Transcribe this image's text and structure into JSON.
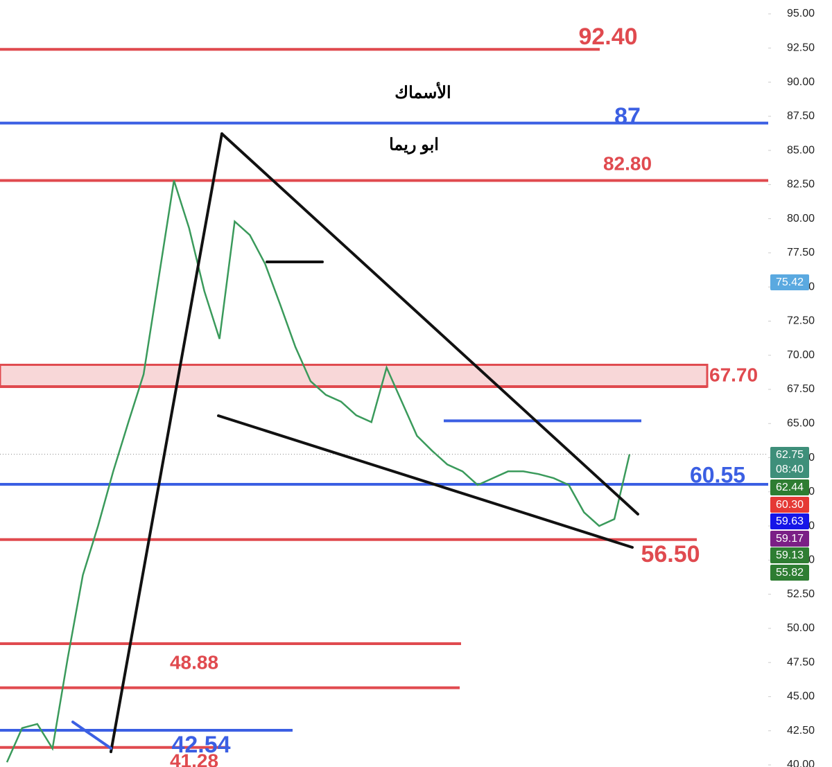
{
  "chart_data": {
    "type": "line",
    "annotations": [
      "الأسماك",
      "ابو ريما"
    ],
    "series": [
      {
        "color": "#3a9a5b",
        "values": [
          40.2,
          42.7,
          43.0,
          41.2,
          47.8,
          53.9,
          57.5,
          61.5,
          65.1,
          68.6,
          75.7,
          82.8,
          79.3,
          74.7,
          71.2,
          79.8,
          78.8,
          76.7,
          73.7,
          70.6,
          68.1,
          67.1,
          66.6,
          65.6,
          65.1,
          69.1,
          66.6,
          64.1,
          63.0,
          62.0,
          61.5,
          60.5,
          61.0,
          61.5,
          61.5,
          61.3,
          61.0,
          60.5,
          58.5,
          57.5,
          58.0,
          62.75
        ]
      }
    ],
    "levels": [
      {
        "value": 92.4,
        "label": "92.40",
        "color": "#e04a4f"
      },
      {
        "value": 87,
        "label": "87",
        "color": "#3b5fe3"
      },
      {
        "value": 82.8,
        "label": "82.80",
        "color": "#e04a4f"
      },
      {
        "value": 67.7,
        "label": "67.70",
        "color": "#e04a4f",
        "zone_top": 69.3
      },
      {
        "value": 65.2,
        "color": "#3b5fe3"
      },
      {
        "value": 60.55,
        "label": "60.55",
        "color": "#3b5fe3"
      },
      {
        "value": 56.5,
        "label": "56.50",
        "color": "#e04a4f"
      },
      {
        "value": 48.88,
        "label": "48.88",
        "color": "#e04a4f"
      },
      {
        "value": 45.65,
        "color": "#e04a4f"
      },
      {
        "value": 42.54,
        "label": "42.54",
        "color": "#3b5fe3"
      },
      {
        "value": 41.28,
        "label": "41.28",
        "color": "#e04a4f"
      }
    ],
    "axis_badges": [
      {
        "value": 75.42,
        "label": "75.42",
        "color": "#5aa9e0"
      },
      {
        "value": 62.75,
        "label": "62.75",
        "color": "#3e8f7a"
      },
      {
        "value": 62.44,
        "label": "62.44",
        "color": "#2e7d32"
      },
      {
        "value": 60.3,
        "label": "60.30",
        "color": "#e53935"
      },
      {
        "value": 59.63,
        "label": "59.63",
        "color": "#1616e8"
      },
      {
        "value": 59.17,
        "label": "59.17",
        "color": "#7b1f86"
      },
      {
        "value": 59.13,
        "label": "59.13",
        "color": "#2e7d32"
      },
      {
        "value": 55.82,
        "label": "55.82",
        "color": "#2e7d32"
      }
    ],
    "countdown": "08:40",
    "ylim": [
      40,
      95
    ],
    "yticks": [
      {
        "value": 95,
        "label": "95.00"
      },
      {
        "value": 92.5,
        "label": "92.50"
      },
      {
        "value": 90,
        "label": "90.00"
      },
      {
        "value": 87.5,
        "label": "87.50"
      },
      {
        "value": 85,
        "label": "85.00"
      },
      {
        "value": 82.5,
        "label": "82.50"
      },
      {
        "value": 80,
        "label": "80.00"
      },
      {
        "value": 77.5,
        "label": "77.50"
      },
      {
        "value": 75,
        "label": "75.00"
      },
      {
        "value": 72.5,
        "label": "72.50"
      },
      {
        "value": 70,
        "label": "70.00"
      },
      {
        "value": 67.5,
        "label": "67.50"
      },
      {
        "value": 65,
        "label": "65.00"
      },
      {
        "value": 62.5,
        "label": "62.50"
      },
      {
        "value": 60,
        "label": "60.00"
      },
      {
        "value": 57.5,
        "label": "57.50"
      },
      {
        "value": 55,
        "label": "55.00"
      },
      {
        "value": 52.5,
        "label": "52.50"
      },
      {
        "value": 50,
        "label": "50.00"
      },
      {
        "value": 47.5,
        "label": "47.50"
      },
      {
        "value": 45,
        "label": "45.00"
      },
      {
        "value": 42.5,
        "label": "42.50"
      },
      {
        "value": 40,
        "label": "40.00"
      }
    ]
  }
}
